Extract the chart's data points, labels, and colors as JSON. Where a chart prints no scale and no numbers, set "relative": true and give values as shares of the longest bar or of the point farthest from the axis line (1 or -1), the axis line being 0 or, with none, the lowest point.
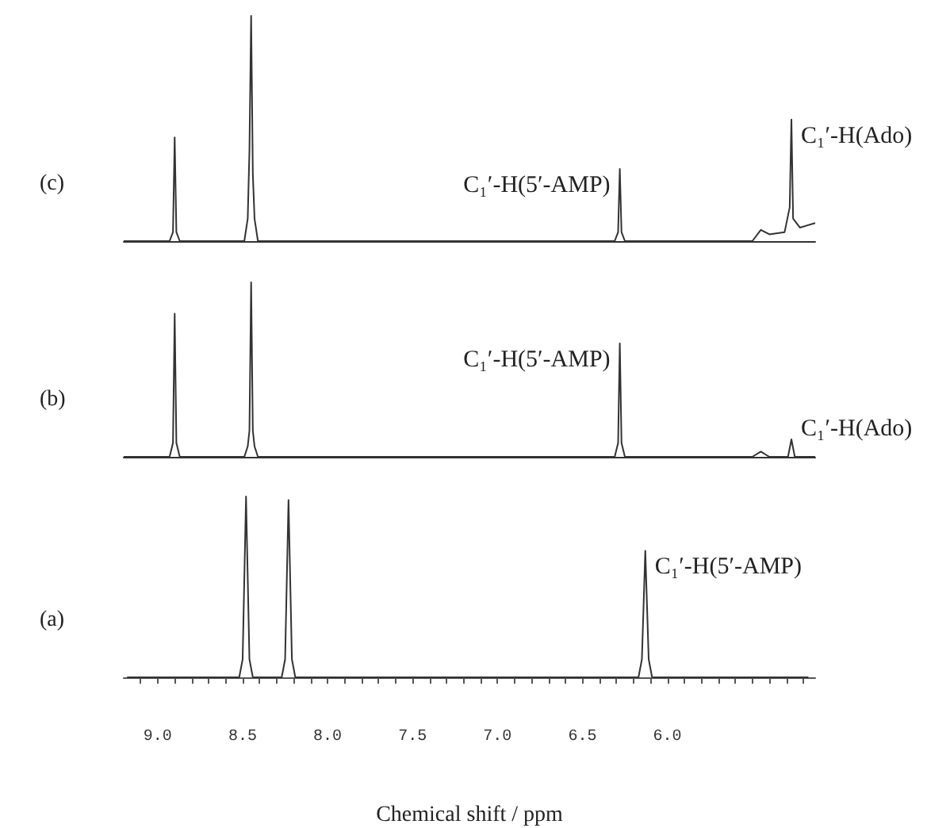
{
  "chart_data": [
    {
      "type": "line",
      "title": "(c)",
      "relative": true,
      "tick_labels": false,
      "xlim": [
        9.2,
        5.13
      ],
      "color": "#333333",
      "x": [
        9.2,
        8.93,
        8.91,
        8.9,
        8.89,
        8.87,
        8.49,
        8.47,
        8.46,
        8.45,
        8.44,
        8.43,
        8.41,
        6.31,
        6.29,
        6.28,
        6.27,
        6.25,
        5.5,
        5.45,
        5.4,
        5.31,
        5.28,
        5.27,
        5.26,
        5.22,
        5.13
      ],
      "values": [
        0,
        0,
        0.04,
        0.46,
        0.04,
        0,
        0,
        0.1,
        0.4,
        1,
        0.3,
        0.1,
        0,
        0,
        0.04,
        0.32,
        0.04,
        0,
        0,
        0.05,
        0.03,
        0.04,
        0.15,
        0.54,
        0.1,
        0.06,
        0.08
      ],
      "annotations": [
        {
          "text": "C₁′-H(5′-AMP)",
          "x": 6.28,
          "y": 0.32
        },
        {
          "text": "C₁′-H(Ado)",
          "x": 5.27,
          "y": 0.54
        }
      ]
    },
    {
      "type": "line",
      "title": "(b)",
      "relative": true,
      "tick_labels": false,
      "xlim": [
        9.2,
        5.13
      ],
      "color": "#333333",
      "x": [
        9.2,
        8.93,
        8.91,
        8.9,
        8.89,
        8.87,
        8.49,
        8.47,
        8.46,
        8.45,
        8.44,
        8.43,
        8.41,
        6.31,
        6.29,
        6.28,
        6.27,
        6.25,
        5.5,
        5.45,
        5.4,
        5.29,
        5.27,
        5.25,
        5.13
      ],
      "values": [
        0,
        0,
        0.08,
        0.82,
        0.08,
        0,
        0,
        0.06,
        0.15,
        1,
        0.15,
        0.06,
        0,
        0,
        0.08,
        0.65,
        0.08,
        0,
        0,
        0.03,
        0,
        0,
        0.1,
        0,
        0
      ],
      "annotations": [
        {
          "text": "C₁′-H(5′-AMP)",
          "x": 6.28,
          "y": 0.65
        },
        {
          "text": "C₁′-H(Ado)",
          "x": 5.27,
          "y": 0.1
        }
      ]
    },
    {
      "type": "line",
      "title": "(a)",
      "relative": true,
      "tick_labels": "x",
      "xlabel": "Chemical shift / ppm",
      "xlim": [
        9.2,
        5.13
      ],
      "color": "#333333",
      "xticks": [
        {
          "value": 9.1,
          "label": null
        },
        {
          "value": 9.0,
          "label": "9.0"
        },
        {
          "value": 8.9,
          "label": null
        },
        {
          "value": 8.8,
          "label": null
        },
        {
          "value": 8.7,
          "label": null
        },
        {
          "value": 8.6,
          "label": null
        },
        {
          "value": 8.5,
          "label": "8.5"
        },
        {
          "value": 8.4,
          "label": null
        },
        {
          "value": 8.3,
          "label": null
        },
        {
          "value": 8.2,
          "label": null
        },
        {
          "value": 8.1,
          "label": null
        },
        {
          "value": 8.0,
          "label": "8.0"
        },
        {
          "value": 7.9,
          "label": null
        },
        {
          "value": 7.8,
          "label": null
        },
        {
          "value": 7.7,
          "label": null
        },
        {
          "value": 7.6,
          "label": null
        },
        {
          "value": 7.5,
          "label": "7.5"
        },
        {
          "value": 7.4,
          "label": null
        },
        {
          "value": 7.3,
          "label": null
        },
        {
          "value": 7.2,
          "label": null
        },
        {
          "value": 7.1,
          "label": null
        },
        {
          "value": 7.0,
          "label": "7.0"
        },
        {
          "value": 6.9,
          "label": null
        },
        {
          "value": 6.8,
          "label": null
        },
        {
          "value": 6.7,
          "label": null
        },
        {
          "value": 6.6,
          "label": null
        },
        {
          "value": 6.5,
          "label": "6.5"
        },
        {
          "value": 6.4,
          "label": null
        },
        {
          "value": 6.3,
          "label": null
        },
        {
          "value": 6.2,
          "label": null
        },
        {
          "value": 6.1,
          "label": null
        },
        {
          "value": 6.0,
          "label": "6.0"
        },
        {
          "value": 5.9,
          "label": null
        },
        {
          "value": 5.8,
          "label": null
        },
        {
          "value": 5.7,
          "label": null
        },
        {
          "value": 5.6,
          "label": null
        },
        {
          "value": 5.5,
          "label": null
        },
        {
          "value": 5.4,
          "label": null
        },
        {
          "value": 5.3,
          "label": null
        },
        {
          "value": 5.2,
          "label": null
        }
      ],
      "x": [
        9.18,
        8.52,
        8.5,
        8.48,
        8.46,
        8.44,
        8.27,
        8.25,
        8.23,
        8.21,
        8.19,
        6.17,
        6.15,
        6.13,
        6.11,
        6.09,
        5.17
      ],
      "values": [
        0,
        0,
        0.1,
        1,
        0.1,
        0,
        0,
        0.1,
        0.98,
        0.1,
        0,
        0,
        0.1,
        0.7,
        0.1,
        0,
        0
      ],
      "annotations": [
        {
          "text": "C₁′-H(5′-AMP)",
          "x": 6.13,
          "y": 0.7
        }
      ]
    }
  ]
}
